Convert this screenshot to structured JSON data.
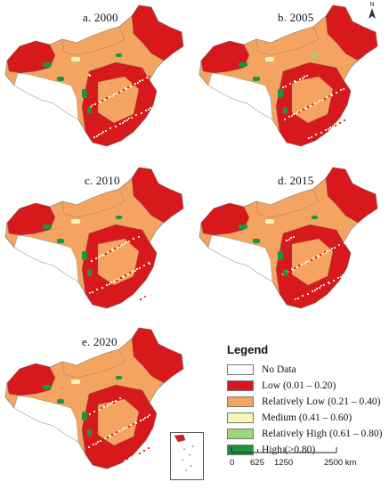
{
  "maps": [
    {
      "label": "a. 2000"
    },
    {
      "label": "b. 2005"
    },
    {
      "label": "c. 2010"
    },
    {
      "label": "d. 2015"
    },
    {
      "label": "e. 2020"
    }
  ],
  "north": {
    "label": "N"
  },
  "legend": {
    "title": "Legend",
    "items": [
      {
        "label": "No Data",
        "color": "#ffffff"
      },
      {
        "label": "Low (0.01 – 0.20)",
        "color": "#d7191c"
      },
      {
        "label": "Relatively Low (0.21 – 0.40)",
        "color": "#f4a460"
      },
      {
        "label": "Medium (0.41 – 0.60)",
        "color": "#f7f7b8"
      },
      {
        "label": "Relatively High (0.61 – 0.80)",
        "color": "#9fd47a"
      },
      {
        "label": "High (>0.80)",
        "color": "#1a9641"
      }
    ]
  },
  "scale": {
    "ticks": [
      "0",
      "625",
      "1250",
      "2500 km"
    ]
  },
  "colors": {
    "low": "#d7191c",
    "rel_low": "#f4a460",
    "medium": "#f7f7b8",
    "rel_high": "#9fd47a",
    "high": "#1a9641",
    "outline": "#777777"
  }
}
